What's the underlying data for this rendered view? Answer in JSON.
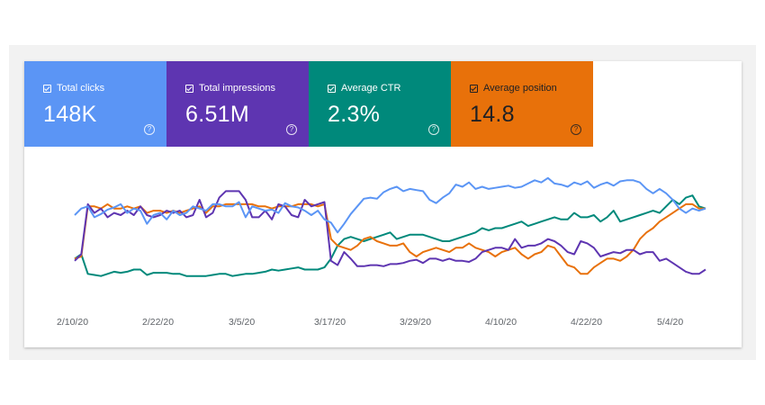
{
  "metrics": [
    {
      "label": "Total clicks",
      "value": "148K",
      "color": "#5b95f5",
      "text_color": "#ffffff",
      "help_icon": "question-circle-icon"
    },
    {
      "label": "Total impressions",
      "value": "6.51M",
      "color": "#5e35b1",
      "text_color": "#ffffff",
      "help_icon": "question-circle-icon"
    },
    {
      "label": "Average CTR",
      "value": "2.3%",
      "color": "#00897b",
      "text_color": "#ffffff",
      "help_icon": "question-circle-icon"
    },
    {
      "label": "Average position",
      "value": "14.8",
      "color": "#e8710a",
      "text_color": "#202124",
      "help_icon": "question-circle-icon"
    }
  ],
  "chart_data": {
    "type": "line",
    "x_tick_labels": [
      "2/10/20",
      "2/22/20",
      "3/5/20",
      "3/17/20",
      "3/29/20",
      "4/10/20",
      "4/22/20",
      "5/4/20"
    ],
    "y_axis_visible": false,
    "grid": false,
    "legend": "metric tiles above chart",
    "y_range": [
      0,
      100
    ],
    "series": [
      {
        "color": "#5b95f5",
        "values": [
          62,
          68,
          70,
          60,
          63,
          67,
          69,
          72,
          64,
          68,
          66,
          54,
          62,
          64,
          58,
          66,
          62,
          64,
          70,
          68,
          66,
          72,
          72,
          70,
          70,
          74,
          60,
          70,
          68,
          66,
          67,
          64,
          73,
          70,
          69,
          66,
          62,
          66,
          58,
          55,
          46,
          54,
          63,
          70,
          77,
          78,
          77,
          83,
          86,
          88,
          84,
          86,
          85,
          84,
          76,
          73,
          78,
          82,
          90,
          88,
          92,
          86,
          88,
          86,
          87,
          88,
          89,
          87,
          88,
          91,
          94,
          92,
          96,
          91,
          90,
          88,
          92,
          90,
          93,
          87,
          90,
          92,
          89,
          93,
          94,
          94,
          92,
          86,
          82,
          86,
          82,
          76,
          68,
          64,
          68,
          66,
          68
        ]
      },
      {
        "color": "#5e35b1",
        "values": [
          20,
          26,
          72,
          64,
          68,
          60,
          64,
          62,
          66,
          62,
          70,
          62,
          60,
          62,
          66,
          64,
          66,
          60,
          62,
          76,
          60,
          64,
          78,
          84,
          84,
          84,
          76,
          60,
          60,
          66,
          58,
          72,
          70,
          62,
          60,
          76,
          70,
          72,
          74,
          20,
          16,
          28,
          22,
          15,
          15,
          16,
          16,
          15,
          17,
          17,
          18,
          20,
          21,
          18,
          22,
          22,
          20,
          22,
          20,
          20,
          19,
          22,
          28,
          30,
          32,
          32,
          30,
          40,
          32,
          34,
          34,
          36,
          40,
          38,
          34,
          28,
          26,
          38,
          36,
          32,
          24,
          26,
          28,
          27,
          30,
          30,
          26,
          28,
          28,
          20,
          22,
          18,
          14,
          10,
          8,
          8,
          12
        ]
      },
      {
        "color": "#00897b",
        "values": [
          22,
          26,
          8,
          7,
          6,
          8,
          10,
          9,
          10,
          12,
          12,
          7,
          9,
          9,
          9,
          8,
          8,
          6,
          6,
          6,
          6,
          7,
          8,
          8,
          6,
          7,
          8,
          8,
          9,
          10,
          12,
          11,
          12,
          13,
          14,
          12,
          12,
          12,
          14,
          22,
          34,
          40,
          42,
          40,
          38,
          40,
          42,
          44,
          46,
          40,
          42,
          44,
          44,
          44,
          42,
          40,
          38,
          38,
          40,
          42,
          44,
          46,
          50,
          48,
          50,
          50,
          52,
          54,
          56,
          52,
          54,
          56,
          58,
          60,
          58,
          58,
          64,
          60,
          60,
          62,
          56,
          60,
          66,
          56,
          58,
          60,
          62,
          64,
          66,
          64,
          70,
          76,
          72,
          78,
          80,
          70,
          68
        ]
      },
      {
        "color": "#e8710a",
        "values": [
          22,
          24,
          70,
          70,
          68,
          72,
          68,
          68,
          70,
          68,
          70,
          64,
          66,
          66,
          64,
          66,
          64,
          66,
          68,
          70,
          64,
          70,
          70,
          72,
          72,
          72,
          72,
          72,
          70,
          70,
          68,
          70,
          70,
          70,
          72,
          72,
          72,
          70,
          72,
          40,
          34,
          32,
          30,
          34,
          40,
          42,
          38,
          36,
          34,
          34,
          36,
          28,
          24,
          28,
          30,
          32,
          30,
          28,
          32,
          32,
          36,
          32,
          30,
          28,
          24,
          28,
          30,
          32,
          26,
          22,
          26,
          28,
          34,
          32,
          24,
          16,
          14,
          8,
          8,
          14,
          18,
          22,
          22,
          20,
          24,
          30,
          40,
          46,
          50,
          56,
          60,
          64,
          68,
          72,
          72,
          68,
          68
        ]
      }
    ]
  }
}
